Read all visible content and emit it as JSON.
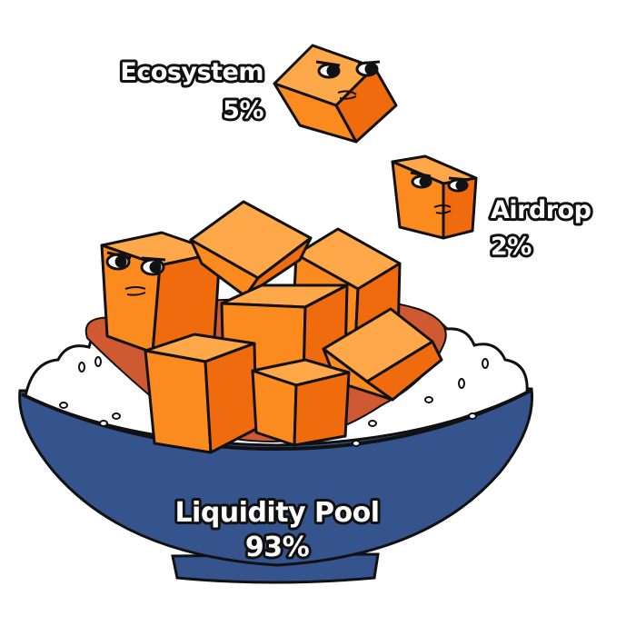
{
  "chart_data": {
    "type": "pie",
    "categories": [
      "Ecosystem",
      "Airdrop",
      "Liquidity Pool"
    ],
    "values": [
      5,
      2,
      93
    ],
    "labels": [
      "5%",
      "2%",
      "93%"
    ],
    "title": "",
    "colors": {
      "cube_light": "#ffa84a",
      "cube_mid": "#fb8a1f",
      "cube_dark": "#f06b0e",
      "sauce": "#cf5a32",
      "bowl": "#35548e",
      "bowl_dark": "#24406f",
      "rice": "#ffffff",
      "outline": "#111111"
    }
  }
}
